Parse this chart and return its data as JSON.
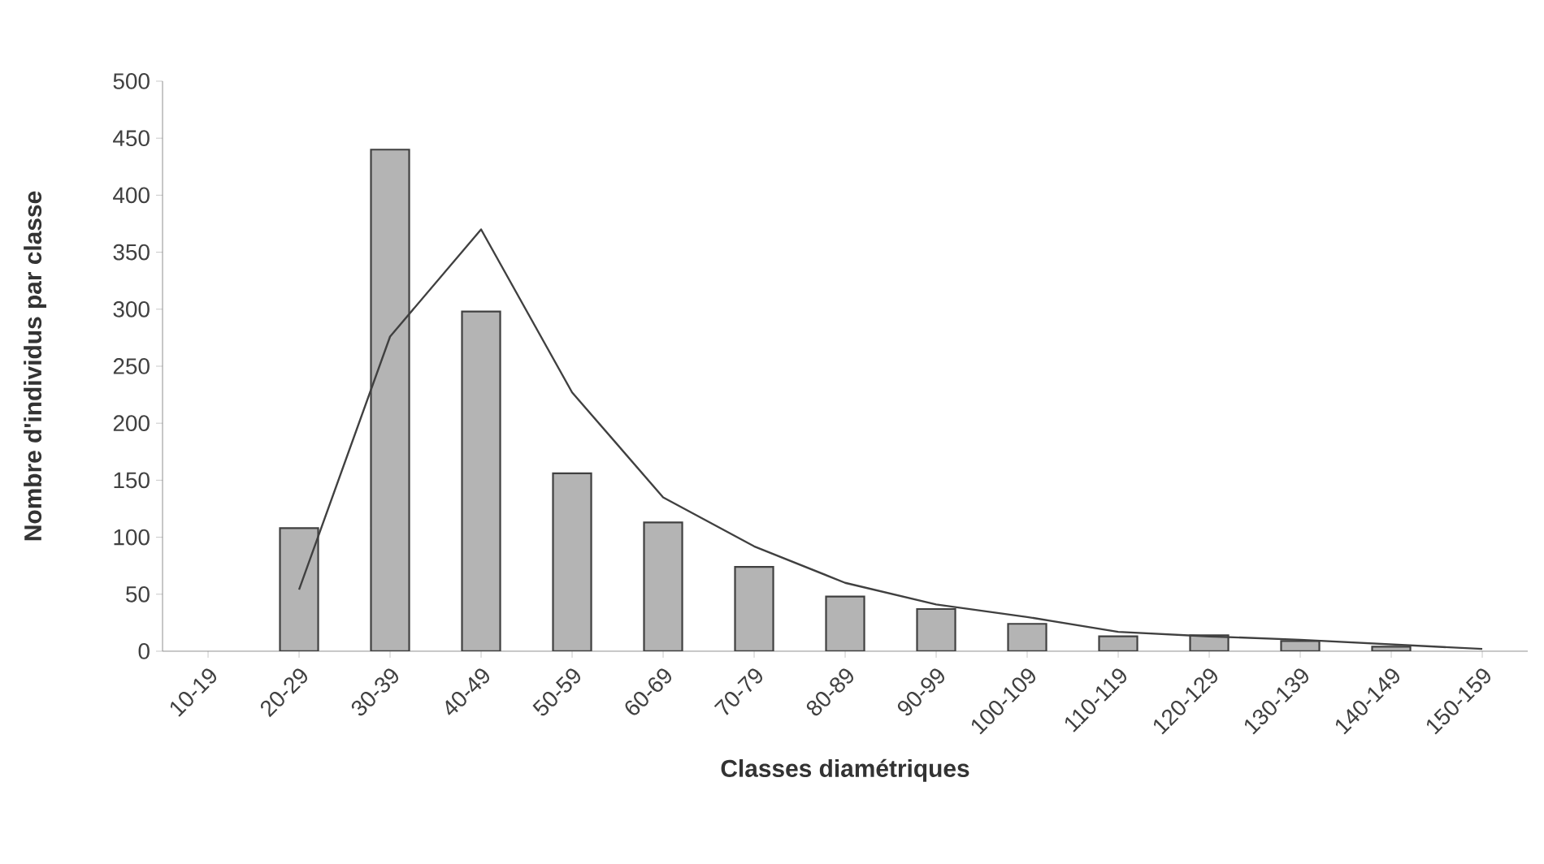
{
  "chart_data": {
    "type": "bar",
    "xlabel": "Classes diamétriques",
    "ylabel": "Nombre d'individus par classe",
    "categories": [
      "10-19",
      "20-29",
      "30-39",
      "40-49",
      "50-59",
      "60-69",
      "70-79",
      "80-89",
      "90-99",
      "100-109",
      "110-119",
      "120-129",
      "130-139",
      "140-149",
      "150-159"
    ],
    "series": [
      {
        "color": "#b4b4b4",
        "values": [
          null,
          108,
          440,
          298,
          156,
          113,
          74,
          48,
          37,
          24,
          13,
          14,
          9,
          4,
          null
        ]
      },
      {
        "type": "line",
        "color": "#404040",
        "values": [
          null,
          54,
          276,
          370,
          227,
          135,
          92,
          60,
          41,
          30,
          17,
          13,
          10,
          6,
          2
        ]
      }
    ],
    "ylim": [
      0,
      500
    ],
    "yticks": [
      0,
      50,
      100,
      150,
      200,
      250,
      300,
      350,
      400,
      450,
      500
    ],
    "grid": false
  }
}
